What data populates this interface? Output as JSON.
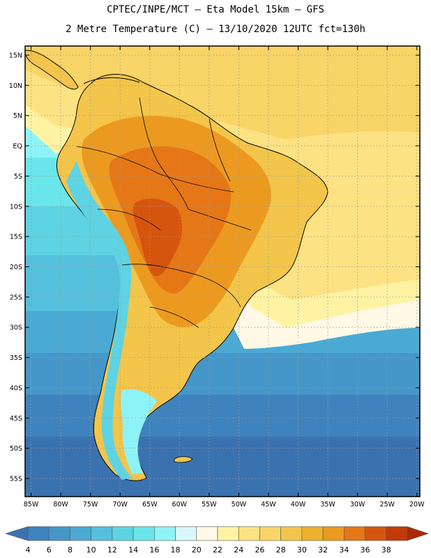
{
  "header": {
    "title_line1": "CPTEC/INPE/MCT –  Eta Model 15km – GFS",
    "title_line2": "2 Metre Temperature (C) – 13/10/2020 12UTC fct=130h"
  },
  "map": {
    "lat_labels": [
      "15N",
      "10N",
      "5N",
      "EQ",
      "5S",
      "10S",
      "15S",
      "20S",
      "25S",
      "30S",
      "35S",
      "40S",
      "45S",
      "50S",
      "55S"
    ],
    "lon_labels": [
      "85W",
      "80W",
      "75W",
      "70W",
      "65W",
      "60W",
      "55W",
      "50W",
      "45W",
      "40W",
      "35W",
      "30W",
      "25W",
      "20W"
    ],
    "lat_values": [
      15,
      10,
      5,
      0,
      -5,
      -10,
      -15,
      -20,
      -25,
      -30,
      -35,
      -40,
      -45,
      -50,
      -55
    ],
    "lon_values": [
      -85,
      -80,
      -75,
      -70,
      -65,
      -60,
      -55,
      -50,
      -45,
      -40,
      -35,
      -30,
      -25,
      -20
    ]
  },
  "colorbar": {
    "labels": [
      "4",
      "6",
      "8",
      "10",
      "12",
      "14",
      "16",
      "18",
      "20",
      "22",
      "24",
      "26",
      "28",
      "30",
      "32",
      "34",
      "36",
      "38"
    ],
    "colors": [
      "#3a72b0",
      "#3e83bd",
      "#4597c9",
      "#4aaad4",
      "#55c0dc",
      "#5ed3e3",
      "#6ae6eb",
      "#8ef3f7",
      "#d9f7fa",
      "#fff9e6",
      "#fff3a3",
      "#fde283",
      "#f9d466",
      "#f3c54a",
      "#efb12c",
      "#ec9a1f",
      "#e57717",
      "#d6550e",
      "#c23a08",
      "#a82a05"
    ]
  }
}
